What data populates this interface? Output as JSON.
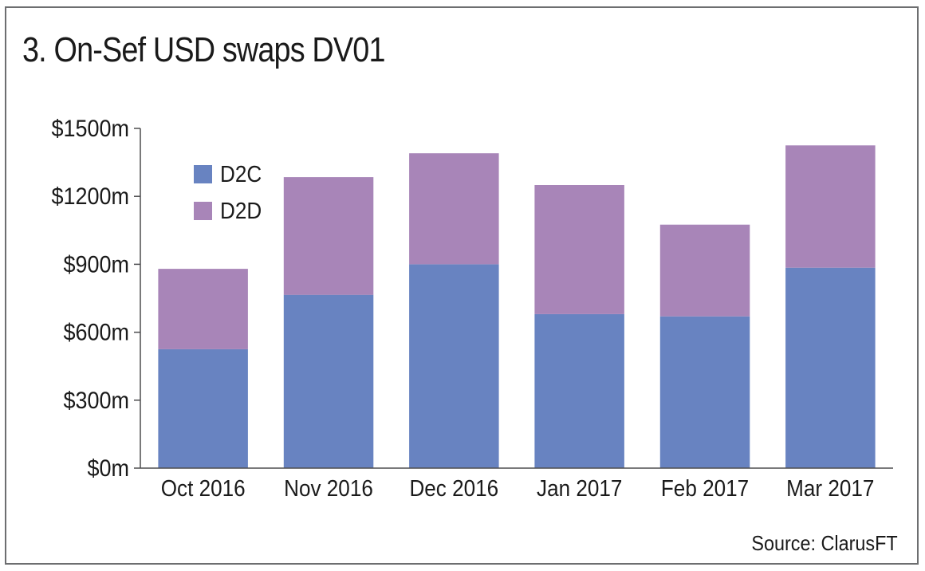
{
  "title": "3. On-Sef USD swaps DV01",
  "source": "Source: ClarusFT",
  "colors": {
    "D2C": "#6883c1",
    "D2D": "#a885b8",
    "axis": "#4d4d4f",
    "frame": "#6d6e70"
  },
  "chart_data": {
    "type": "bar",
    "stacked": true,
    "title": "3. On-Sef USD swaps DV01",
    "xlabel": "",
    "ylabel": "",
    "ylim": [
      0,
      1500
    ],
    "yticks": [
      0,
      300,
      600,
      900,
      1200,
      1500
    ],
    "ytick_labels": [
      "$0m",
      "$300m",
      "$600m",
      "$900m",
      "$1200m",
      "$1500m"
    ],
    "categories": [
      "Oct 2016",
      "Nov 2016",
      "Dec 2016",
      "Jan 2017",
      "Feb 2017",
      "Mar 2017"
    ],
    "series": [
      {
        "name": "D2C",
        "values": [
          525,
          765,
          900,
          680,
          670,
          885
        ]
      },
      {
        "name": "D2D",
        "values": [
          355,
          520,
          490,
          570,
          405,
          540
        ]
      }
    ],
    "legend": {
      "position": "top-left",
      "entries": [
        "D2C",
        "D2D"
      ]
    },
    "grid": false
  }
}
